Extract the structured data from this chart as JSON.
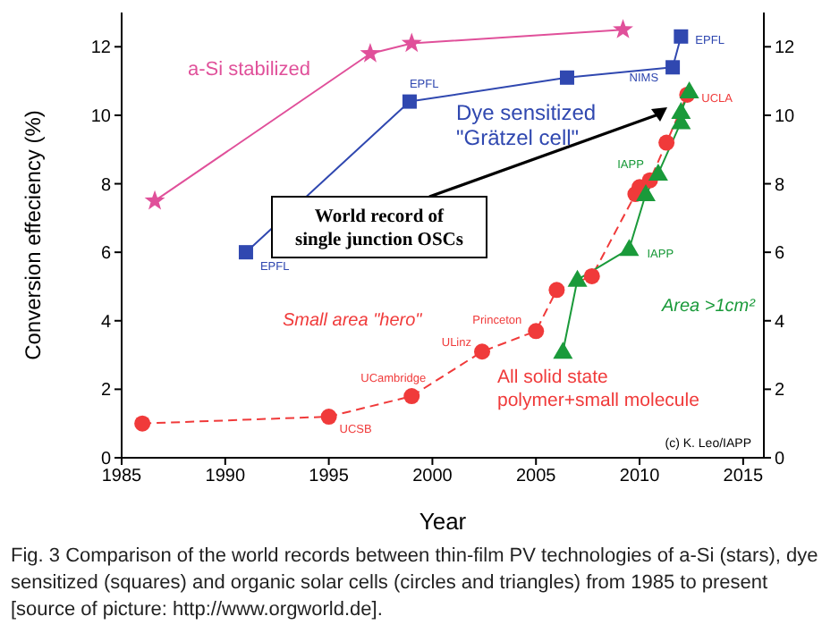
{
  "chart_data": {
    "type": "line",
    "xlabel": "Year",
    "ylabel": "Conversion effeciency (%)",
    "xlim": [
      1985,
      2016
    ],
    "xticks": [
      1985,
      1990,
      1995,
      2000,
      2005,
      2010,
      2015
    ],
    "ylim": [
      0,
      13
    ],
    "yticks": [
      0,
      2,
      4,
      6,
      8,
      10,
      12
    ],
    "y2lim": [
      0,
      13
    ],
    "y2ticks": [
      0,
      2,
      4,
      6,
      8,
      10,
      12
    ],
    "series": [
      {
        "name": "a-Si stabilized",
        "color": "#e0509a",
        "marker": "star",
        "line_style": "solid",
        "x": [
          1986.6,
          1997.0,
          1999.0,
          2009.2
        ],
        "values": [
          7.5,
          11.8,
          12.1,
          12.5
        ]
      },
      {
        "name": "Dye sensitized \"Grätzel cell\"",
        "color": "#3048b0",
        "marker": "square",
        "line_style": "solid",
        "x": [
          1991.0,
          1998.9,
          2006.5,
          2011.6,
          2012.0
        ],
        "values": [
          6.0,
          10.4,
          11.1,
          11.4,
          12.3
        ]
      },
      {
        "name": "Small area \"hero\"",
        "color": "#f03a3a",
        "marker": "circle",
        "line_style": "dashed",
        "x": [
          1986.0,
          1995.0,
          1999.0,
          2002.4,
          2005.0,
          2006.0,
          2007.7,
          2009.8,
          2010.0,
          2010.5,
          2011.3,
          2012.3
        ],
        "values": [
          1.0,
          1.2,
          1.8,
          3.1,
          3.7,
          4.9,
          5.3,
          7.7,
          7.9,
          8.1,
          9.2,
          10.6
        ]
      },
      {
        "name": "Area >1cm²",
        "color": "#1a9a3a",
        "marker": "triangle",
        "line_style": "solid",
        "x": [
          2006.3,
          2007.0,
          2009.5,
          2010.3,
          2010.9,
          2012.0,
          2012.0,
          2012.4
        ],
        "values": [
          3.1,
          5.2,
          6.1,
          7.7,
          8.3,
          9.8,
          10.1,
          10.7
        ]
      }
    ],
    "annotations": [
      "World record of single junction OSCs",
      "All solid state polymer+small molecule",
      "(c) K. Leo/IAPP",
      "Fig. 3 Comparison of the world records between thin-film PV technologies of a-Si (stars), dye sensitized (squares) and organic solar cells (circles and triangles) from 1985 to present [source of picture: http://www.orgworld.de].",
      {
        "text": "UCSB",
        "x": 1995.0,
        "y": 1.2
      },
      {
        "text": "UCambridge",
        "x": 1999.0,
        "y": 1.8
      },
      {
        "text": "ULinz",
        "x": 2002.4,
        "y": 3.1
      },
      {
        "text": "Princeton",
        "x": 2005.0,
        "y": 3.7
      },
      {
        "text": "EPFL",
        "x": 1991.0,
        "y": 6.0
      },
      {
        "text": "EPFL",
        "x": 1998.9,
        "y": 10.4
      },
      {
        "text": "EPFL",
        "x": 2012.0,
        "y": 12.3
      },
      {
        "text": "NIMS",
        "x": 2011.6,
        "y": 11.4
      },
      {
        "text": "UCLA",
        "x": 2012.3,
        "y": 10.6
      },
      {
        "text": "IAPP",
        "x": 2010.9,
        "y": 8.3
      },
      {
        "text": "IAPP",
        "x": 2009.5,
        "y": 6.1
      }
    ]
  }
}
